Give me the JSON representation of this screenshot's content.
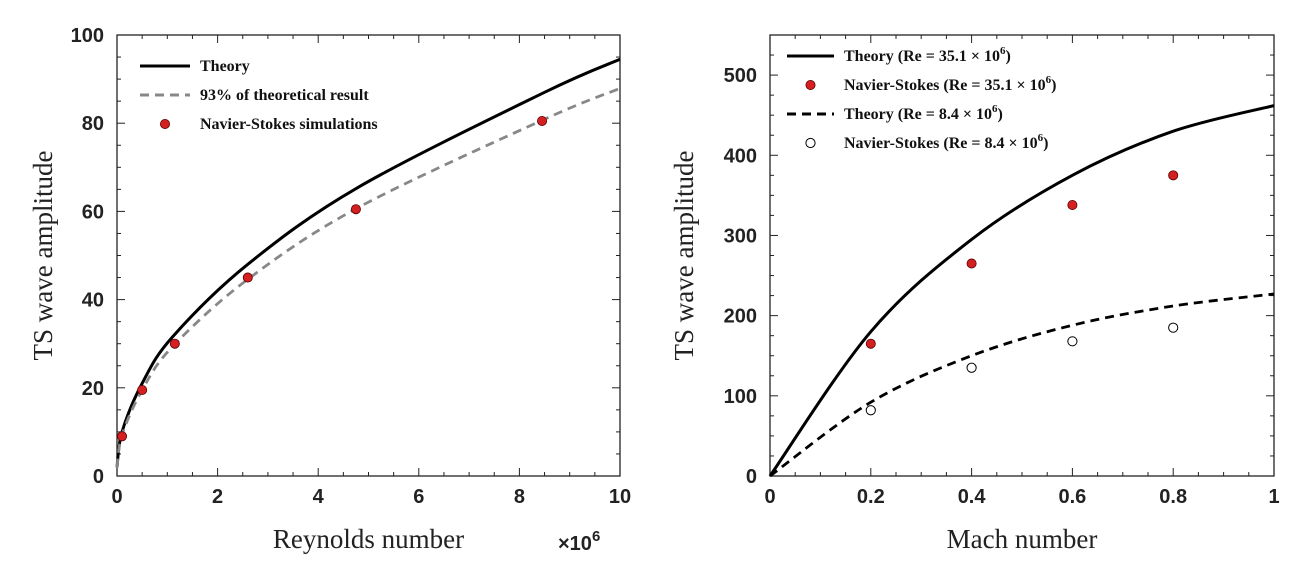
{
  "chart_data": [
    {
      "type": "line",
      "title": "",
      "xlabel": "Reynolds number",
      "ylabel": "TS wave amplitude",
      "x_multiplier_label": "×10^6",
      "xlim": [
        0,
        10
      ],
      "ylim": [
        0,
        100
      ],
      "xticks": [
        0,
        2,
        4,
        6,
        8,
        10
      ],
      "yticks": [
        0,
        20,
        40,
        60,
        80,
        100
      ],
      "legend_position": "top-left",
      "series": [
        {
          "name": "Theory",
          "kind": "line",
          "style": "solid",
          "color": "#000000",
          "x": [
            0,
            0.1,
            0.5,
            1.1,
            2.6,
            4.8,
            8.5,
            10
          ],
          "y": [
            2,
            10,
            21,
            31.5,
            48,
            65.5,
            87,
            94.5
          ]
        },
        {
          "name": "93% of theoretical result",
          "kind": "line",
          "style": "dashed",
          "color": "#888888",
          "x": [
            0,
            0.1,
            0.5,
            1.1,
            2.6,
            4.8,
            8.5,
            10
          ],
          "y": [
            1.9,
            9.3,
            19.5,
            29.3,
            44.6,
            60.9,
            80.9,
            87.9
          ]
        },
        {
          "name": "Navier-Stokes simulations",
          "kind": "scatter",
          "marker": "filled",
          "color": "#d42020",
          "x": [
            0.1,
            0.5,
            1.15,
            2.6,
            4.75,
            8.45
          ],
          "y": [
            9,
            19.5,
            30,
            45,
            60.5,
            80.5
          ]
        }
      ]
    },
    {
      "type": "line",
      "title": "",
      "xlabel": "Mach number",
      "ylabel": "TS wave amplitude",
      "xlim": [
        0,
        1
      ],
      "ylim": [
        0,
        550
      ],
      "xticks": [
        0,
        0.2,
        0.4,
        0.6,
        0.8,
        1
      ],
      "yticks": [
        0,
        100,
        200,
        300,
        400,
        500
      ],
      "legend_position": "top-left",
      "series": [
        {
          "name": "Theory (Re = 35.1 × 10^6)",
          "name_prefix": "Theory (Re = 35.1 × 10",
          "name_exp": "6",
          "name_suffix": ")",
          "kind": "line",
          "style": "solid",
          "color": "#000000",
          "x": [
            0,
            0.2,
            0.4,
            0.6,
            0.8,
            1.0
          ],
          "y": [
            0,
            180,
            295,
            375,
            430,
            462
          ]
        },
        {
          "name": "Navier-Stokes (Re = 35.1 × 10^6)",
          "name_prefix": "Navier-Stokes (Re = 35.1 × 10",
          "name_exp": "6",
          "name_suffix": ")",
          "kind": "scatter",
          "marker": "filled",
          "color": "#d42020",
          "x": [
            0.2,
            0.4,
            0.6,
            0.8
          ],
          "y": [
            165,
            265,
            338,
            375
          ]
        },
        {
          "name": "Theory (Re = 8.4 × 10^6)",
          "name_prefix": "Theory (Re = 8.4 × 10",
          "name_exp": "6",
          "name_suffix": ")",
          "kind": "line",
          "style": "dashed",
          "color": "#000000",
          "x": [
            0,
            0.2,
            0.4,
            0.6,
            0.8,
            1.0
          ],
          "y": [
            0,
            92,
            150,
            188,
            212,
            227
          ]
        },
        {
          "name": "Navier-Stokes (Re = 8.4 × 10^6)",
          "name_prefix": "Navier-Stokes (Re = 8.4 × 10",
          "name_exp": "6",
          "name_suffix": ")",
          "kind": "scatter",
          "marker": "open",
          "color": "#000000",
          "x": [
            0.2,
            0.4,
            0.6,
            0.8
          ],
          "y": [
            82,
            135,
            168,
            185
          ]
        }
      ]
    }
  ]
}
